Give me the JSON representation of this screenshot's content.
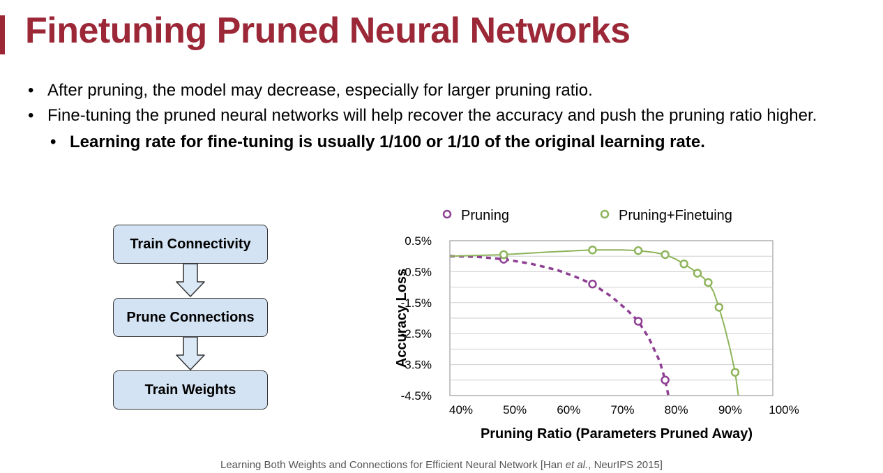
{
  "slide": {
    "title": "Finetuning Pruned Neural Networks",
    "accent_color": "#9b2737",
    "bullets": [
      {
        "text": "After pruning, the model may decrease, especially for larger pruning ratio."
      },
      {
        "text": "Fine-tuning the pruned neural networks will help recover the accuracy and push the pruning ratio higher."
      }
    ],
    "sub_bullet": "Learning rate for fine-tuning is usually 1/100 or 1/10 of the original learning rate.",
    "bullet_glyph": "•",
    "citation": {
      "before": "Learning Both Weights and Connections for Efficient Neural Network [Han ",
      "italic": "et al.",
      "after": ", NeurIPS 2015]"
    }
  },
  "flowchart": {
    "steps": [
      "Train Connectivity",
      "Prune Connections",
      "Train Weights"
    ],
    "box_color": "#d4e3f3",
    "arrow_color": "#dbe8f5"
  },
  "chart_data": {
    "type": "line",
    "xlabel": "Pruning Ratio (Parameters Pruned Away)",
    "ylabel": "Accuracy Loss",
    "xlim": [
      40,
      100
    ],
    "ylim": [
      -4.5,
      0.5
    ],
    "x_ticks": [
      "40%",
      "50%",
      "60%",
      "70%",
      "80%",
      "90%",
      "100%"
    ],
    "y_ticks": [
      "0.5%",
      "-0.5%",
      "-1.5%",
      "-2.5%",
      "-3.5%",
      "-4.5%"
    ],
    "grid": true,
    "legend_position": "top",
    "series": [
      {
        "name": "Pruning",
        "color": "#8e3f92",
        "line_style": "dashed",
        "x": [
          50,
          66.5,
          75,
          80
        ],
        "y": [
          -0.1,
          -0.9,
          -2.1,
          -4.0
        ],
        "curve_x": [
          40,
          45,
          50,
          55,
          60,
          63,
          66.5,
          70,
          73,
          75,
          77,
          79,
          80,
          80.6
        ],
        "curve_y": [
          0.0,
          -0.02,
          -0.1,
          -0.24,
          -0.45,
          -0.64,
          -0.9,
          -1.3,
          -1.75,
          -2.1,
          -2.65,
          -3.4,
          -4.0,
          -4.5
        ]
      },
      {
        "name": "Pruning+Finetuing",
        "color": "#8db45a",
        "line_style": "solid",
        "x": [
          50,
          66.5,
          75,
          80,
          83.5,
          86,
          88,
          90,
          93
        ],
        "y": [
          0.05,
          0.2,
          0.18,
          0.05,
          -0.25,
          -0.55,
          -0.85,
          -1.65,
          -3.75
        ],
        "curve_x": [
          40,
          50,
          58,
          66.5,
          72,
          75,
          78,
          80,
          82,
          83.5,
          85,
          86,
          87,
          88,
          89,
          90,
          91,
          92,
          93,
          93.6
        ],
        "curve_y": [
          0.0,
          0.05,
          0.13,
          0.2,
          0.2,
          0.18,
          0.12,
          0.05,
          -0.1,
          -0.25,
          -0.42,
          -0.55,
          -0.68,
          -0.85,
          -1.15,
          -1.65,
          -2.25,
          -2.95,
          -3.75,
          -4.5
        ]
      }
    ]
  }
}
